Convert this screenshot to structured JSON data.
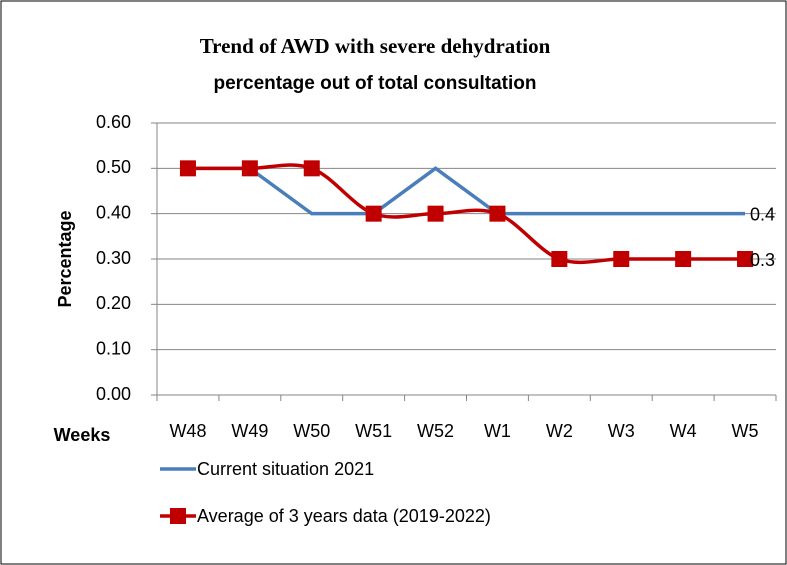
{
  "chart_data": {
    "type": "line",
    "title": [
      "Trend of AWD with severe dehydration",
      "percentage out of total consultation"
    ],
    "x_label": "Weeks",
    "y_label": "Percentage",
    "categories": [
      "W48",
      "W49",
      "W50",
      "W51",
      "W52",
      "W1",
      "W2",
      "W3",
      "W4",
      "W5"
    ],
    "series": [
      {
        "name": "Current situation 2021",
        "color": "#4a7ebb",
        "marker": "none",
        "smooth": false,
        "values": [
          0.5,
          0.5,
          0.4,
          0.4,
          0.5,
          0.4,
          0.4,
          0.4,
          0.4,
          0.4
        ]
      },
      {
        "name": "Average of 3 years data (2019-2022)",
        "color": "#c00000",
        "marker": "square",
        "smooth": true,
        "values": [
          0.5,
          0.5,
          0.5,
          0.4,
          0.4,
          0.4,
          0.3,
          0.3,
          0.3,
          0.3
        ]
      }
    ],
    "ylim": [
      0,
      0.6
    ],
    "yticks": [
      {
        "value": 0,
        "label": "0.00"
      },
      {
        "value": 0.1,
        "label": "0.10"
      },
      {
        "value": 0.2,
        "label": "0.20"
      },
      {
        "value": 0.3,
        "label": "0.30"
      },
      {
        "value": 0.4,
        "label": "0.40"
      },
      {
        "value": 0.5,
        "label": "0.50"
      },
      {
        "value": 0.6,
        "label": "0.60"
      }
    ],
    "grid": true,
    "legend": "bottom"
  }
}
